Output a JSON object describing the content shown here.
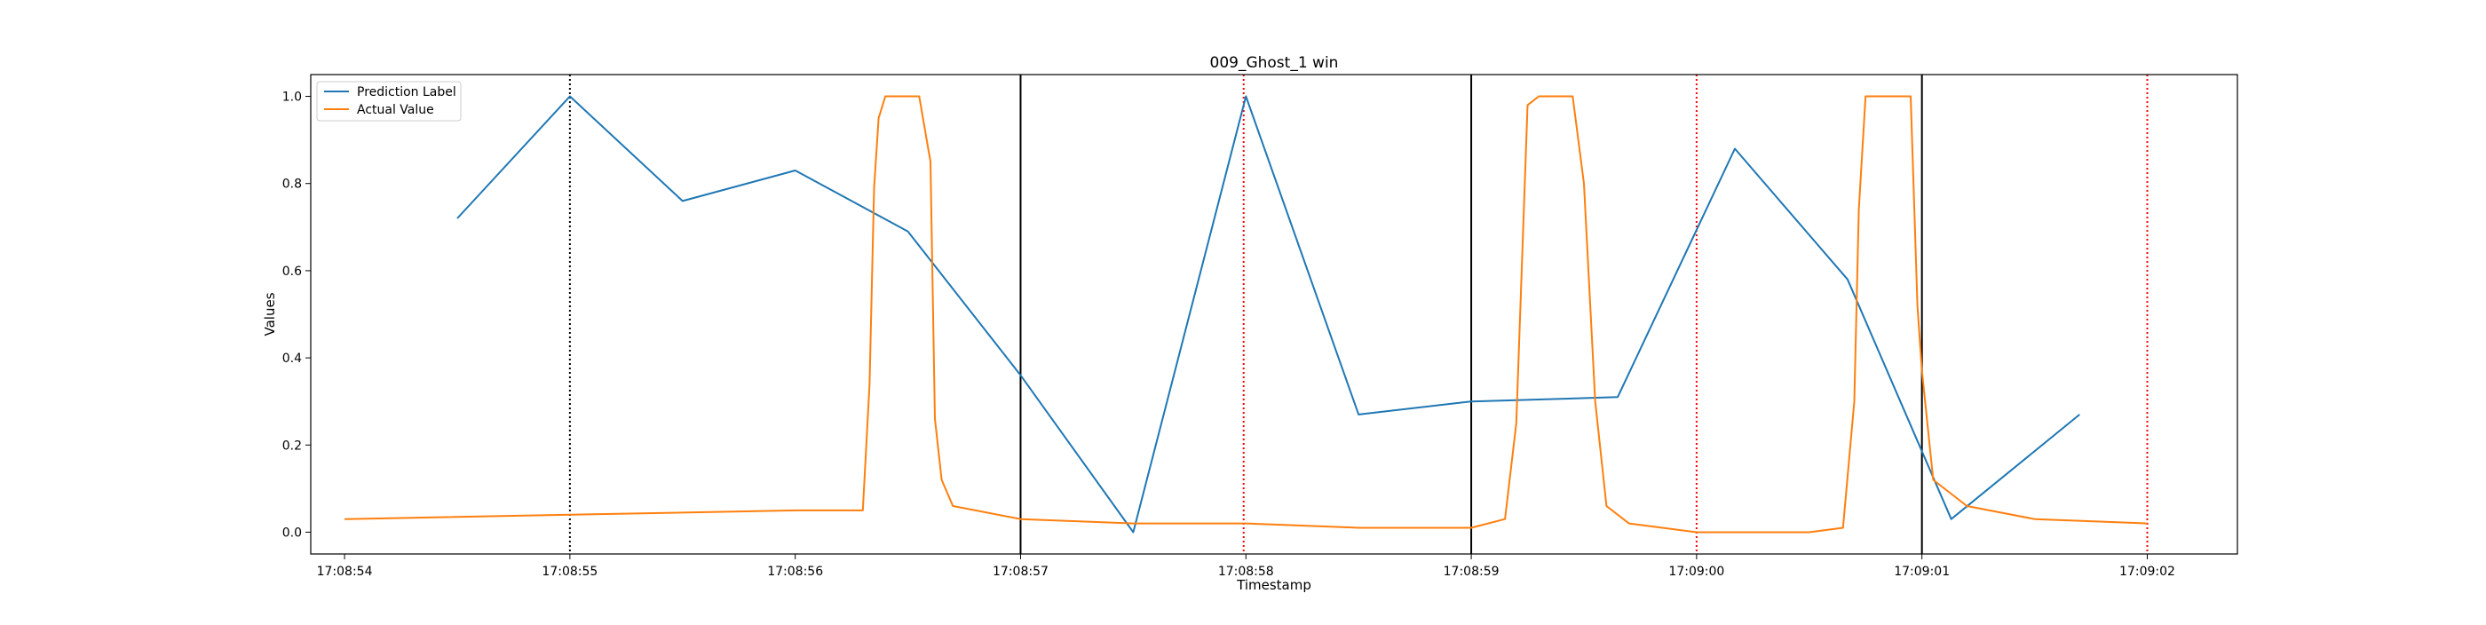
{
  "chart_data": {
    "type": "line",
    "title": "009_Ghost_1 win",
    "xlabel": "Timestamp",
    "ylabel": "Values",
    "x_range_seconds": [
      53.85,
      62.4
    ],
    "ylim": [
      -0.05,
      1.05
    ],
    "x_tick_labels": [
      "17:08:54",
      "17:08:55",
      "17:08:56",
      "17:08:57",
      "17:08:58",
      "17:08:59",
      "17:09:00",
      "17:09:01",
      "17:09:02"
    ],
    "x_tick_seconds": [
      54,
      55,
      56,
      57,
      58,
      59,
      60,
      61,
      62
    ],
    "y_tick_labels": [
      "0.0",
      "0.2",
      "0.4",
      "0.6",
      "0.8",
      "1.0"
    ],
    "y_tick_values": [
      0.0,
      0.2,
      0.4,
      0.6,
      0.8,
      1.0
    ],
    "grid": false,
    "legend_position": "top-left",
    "series": [
      {
        "name": "Prediction Label",
        "color": "#1f77b4",
        "x_seconds": [
          54.5,
          55.0,
          55.5,
          56.0,
          56.5,
          57.0,
          57.5,
          58.0,
          58.5,
          59.0,
          59.65,
          60.17,
          60.67,
          61.13,
          61.7
        ],
        "values": [
          0.72,
          1.0,
          0.76,
          0.83,
          0.69,
          0.36,
          0.0,
          1.0,
          0.27,
          0.3,
          0.31,
          0.88,
          0.58,
          0.03,
          0.27
        ]
      },
      {
        "name": "Actual Value",
        "color": "#ff7f0e",
        "x_seconds": [
          54.0,
          55.0,
          56.0,
          56.3,
          56.33,
          56.35,
          56.37,
          56.4,
          56.45,
          56.55,
          56.6,
          56.62,
          56.65,
          56.7,
          57.0,
          57.5,
          58.0,
          58.5,
          59.0,
          59.15,
          59.2,
          59.25,
          59.3,
          59.4,
          59.45,
          59.5,
          59.55,
          59.6,
          59.7,
          60.0,
          60.5,
          60.65,
          60.7,
          60.72,
          60.75,
          60.8,
          60.95,
          60.97,
          60.98,
          61.0,
          61.05,
          61.2,
          61.5,
          62.0
        ],
        "values": [
          0.03,
          0.04,
          0.05,
          0.05,
          0.34,
          0.79,
          0.95,
          1.0,
          1.0,
          1.0,
          0.85,
          0.26,
          0.12,
          0.06,
          0.03,
          0.02,
          0.02,
          0.01,
          0.01,
          0.03,
          0.25,
          0.98,
          1.0,
          1.0,
          1.0,
          0.8,
          0.3,
          0.06,
          0.02,
          0.0,
          0.0,
          0.01,
          0.3,
          0.74,
          1.0,
          1.0,
          1.0,
          0.68,
          0.52,
          0.37,
          0.12,
          0.06,
          0.03,
          0.02
        ]
      }
    ],
    "vlines": [
      {
        "x_seconds": 55.0,
        "style": "dotted",
        "color": "#000000"
      },
      {
        "x_seconds": 57.0,
        "style": "solid",
        "color": "#000000"
      },
      {
        "x_seconds": 59.0,
        "style": "solid",
        "color": "#000000"
      },
      {
        "x_seconds": 61.0,
        "style": "solid",
        "color": "#000000"
      },
      {
        "x_seconds": 57.99,
        "style": "dotted",
        "color": "#ff0000"
      },
      {
        "x_seconds": 60.0,
        "style": "dotted",
        "color": "#ff0000"
      },
      {
        "x_seconds": 62.0,
        "style": "dotted",
        "color": "#ff0000"
      }
    ]
  }
}
